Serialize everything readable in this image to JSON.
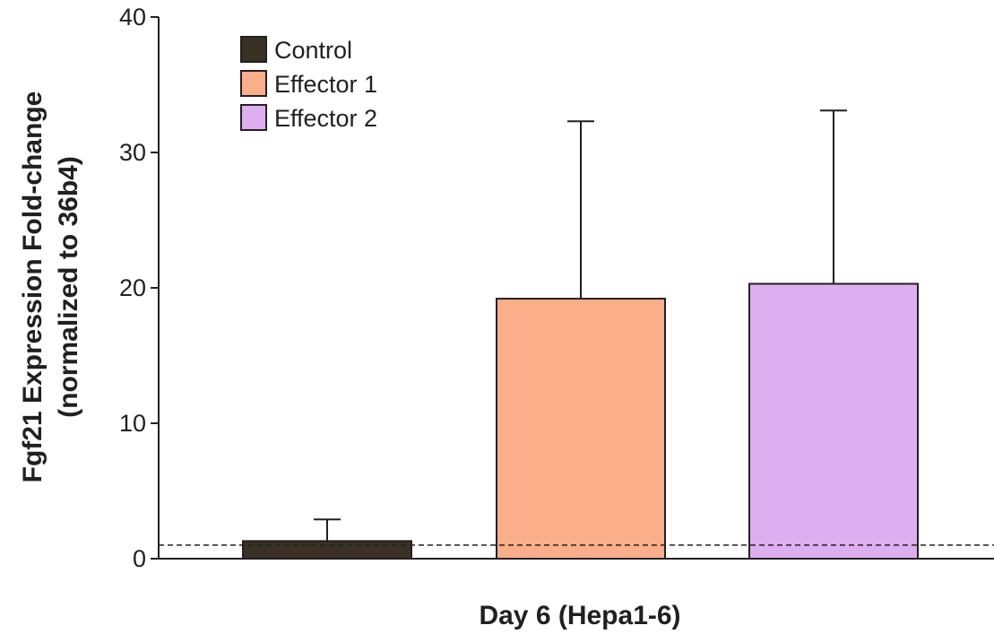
{
  "chart_data": {
    "type": "bar",
    "xlabel": "Day 6 (Hepa1-6)",
    "ylabel": [
      "Fgf21 Expression Fold-change",
      "(normalized to 36b4)"
    ],
    "ylim": [
      0,
      40
    ],
    "yticks": [
      0,
      10,
      20,
      30,
      40
    ],
    "reference_line": 1,
    "legend_position": "top-left",
    "grid": false,
    "series": [
      {
        "name": "Control",
        "value": 1.3,
        "error": 1.6,
        "color": "#3a3125"
      },
      {
        "name": "Effector 1",
        "value": 19.2,
        "error": 13.1,
        "color": "#fbae8a"
      },
      {
        "name": "Effector 2",
        "value": 20.3,
        "error": 12.8,
        "color": "#deaff0"
      }
    ]
  }
}
